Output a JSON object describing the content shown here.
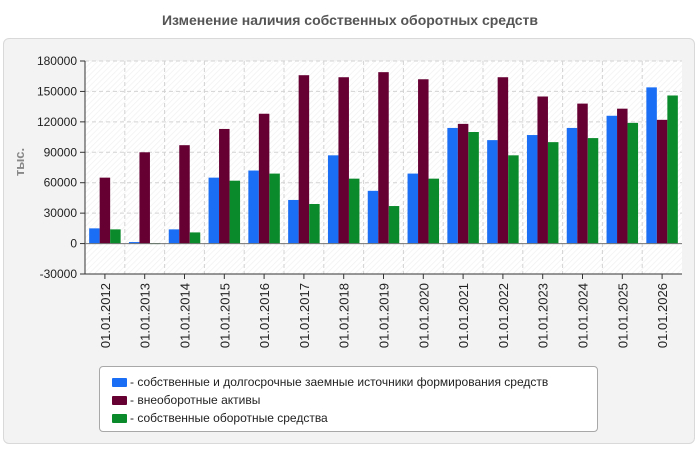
{
  "chart_data": {
    "type": "bar",
    "title": "Изменение наличия собственных оборотных средств",
    "ylabel": "тыс.",
    "xlabel": "",
    "ylim": [
      -30000,
      180000
    ],
    "yticks": [
      -30000,
      0,
      30000,
      60000,
      90000,
      120000,
      150000,
      180000
    ],
    "grid": true,
    "legend_position": "bottom",
    "categories": [
      "01.01.2012",
      "01.01.2013",
      "01.01.2014",
      "01.01.2015",
      "01.01.2016",
      "01.01.2017",
      "01.01.2018",
      "01.01.2019",
      "01.01.2020",
      "01.01.2021",
      "01.01.2022",
      "01.01.2023",
      "01.01.2024",
      "01.01.2025",
      "01.01.2026"
    ],
    "series": [
      {
        "name": "собственные и долгосрочные заемные источники формирования средств",
        "color": "#1a6ef5",
        "values": [
          15000,
          1500,
          14000,
          65000,
          72000,
          43000,
          87000,
          52000,
          69000,
          114000,
          102000,
          107000,
          114000,
          126000,
          154000
        ]
      },
      {
        "name": "внеоборотные активы",
        "color": "#660033",
        "values": [
          65000,
          90000,
          97000,
          113000,
          128000,
          166000,
          164000,
          169000,
          162000,
          118000,
          164000,
          145000,
          138000,
          133000,
          122000
        ]
      },
      {
        "name": "собственные оборотные средства",
        "color": "#0a8a2a",
        "values": [
          14000,
          500,
          11000,
          62000,
          69000,
          39000,
          64000,
          37000,
          64000,
          110000,
          87000,
          100000,
          104000,
          119000,
          146000
        ]
      }
    ]
  }
}
